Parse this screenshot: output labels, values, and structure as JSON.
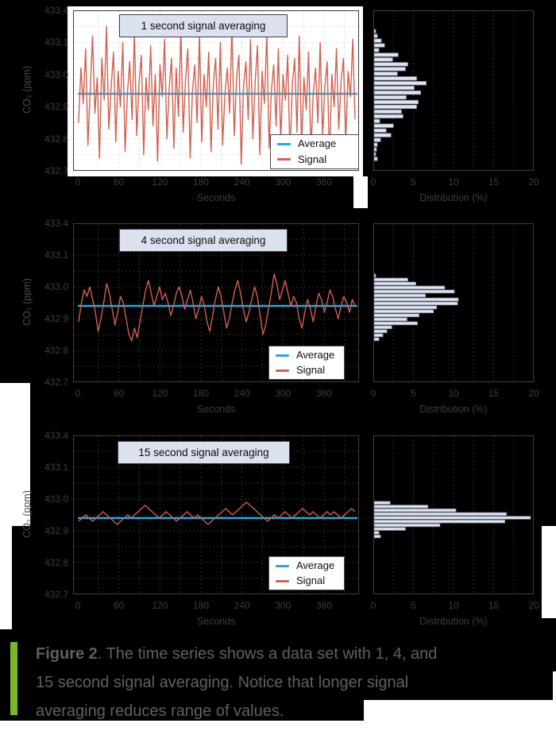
{
  "figure": {
    "caption": {
      "label": "Figure 2",
      "label_suffix": ". The time series shows a data set with 1, 4, and",
      "line2": "15 second signal averaging. Notice that longer signal",
      "line3": "averaging reduces range of values."
    },
    "accent_green": "#79b928"
  },
  "legend": {
    "average_label": "Average",
    "signal_label": "Signal"
  },
  "colors": {
    "signal": "#d0604f",
    "average": "#29a8e0",
    "bar_fill": "#e0e5f2",
    "bar_stroke": "#818898",
    "grid_on_black": "#2f2f2f",
    "grid_on_white": "#d9d9d9",
    "spine_on_black": "#3f3f3f",
    "spine_on_white": "#3a3a3a",
    "title_box_bg": "#dce1ef"
  },
  "chart_data": [
    {
      "type": "line",
      "title": "1 second signal averaging",
      "xlabel": "Seconds",
      "ylabel": "CO₂ (ppm)",
      "xticks": [
        0,
        60,
        120,
        180,
        240,
        300,
        360
      ],
      "ytick_labels": [
        "433.4",
        "433.1",
        "433.0",
        "432.9",
        "432.8",
        "432.7"
      ],
      "ylim": [
        432.7,
        433.2
      ],
      "average_value": 432.94,
      "legend": [
        "Average",
        "Signal"
      ],
      "series_values": [
        432.85,
        433.02,
        432.91,
        433.08,
        432.78,
        432.95,
        433.12,
        432.88,
        432.99,
        432.74,
        433.05,
        432.92,
        433.15,
        432.83,
        432.96,
        433.07,
        432.79,
        433.01,
        432.9,
        433.1,
        432.76,
        432.94,
        433.04,
        432.86,
        433.13,
        432.81,
        432.97,
        433.06,
        432.75,
        432.99,
        432.89,
        433.09,
        432.84,
        433.0,
        432.73,
        433.03,
        432.93,
        433.11,
        432.8,
        432.96,
        433.05,
        432.77,
        433.02,
        432.87,
        433.14,
        432.82,
        432.98,
        433.08,
        432.74,
        432.95,
        433.03,
        432.85,
        433.12,
        432.79,
        433.0,
        432.9,
        433.07,
        432.76,
        432.97,
        433.05,
        432.83,
        433.1,
        432.78,
        432.94,
        433.02,
        432.88,
        433.15,
        432.81,
        432.99,
        433.06,
        432.72,
        432.96,
        433.04,
        432.86,
        433.11,
        432.8,
        432.98,
        433.09,
        432.75,
        433.01,
        432.91,
        433.13,
        432.77,
        432.95,
        433.03,
        432.84,
        433.08,
        432.79,
        433.0,
        432.92,
        433.06,
        432.74,
        432.97,
        433.05,
        432.82,
        433.12,
        432.78,
        432.99,
        432.89,
        433.07,
        432.76,
        432.94,
        433.02,
        432.85,
        433.1,
        432.81,
        432.96,
        433.04,
        432.73,
        433.0,
        432.9,
        433.08,
        432.83,
        432.98,
        433.05,
        432.79,
        433.01,
        432.93,
        433.11,
        432.86
      ]
    },
    {
      "type": "line",
      "title": "4 second signal averaging",
      "xlabel": "Seconds",
      "ylabel": "CO₂ (ppm)",
      "xticks": [
        0,
        60,
        120,
        180,
        240,
        300,
        360
      ],
      "ytick_labels": [
        "433.4",
        "433.1",
        "433.0",
        "432.9",
        "432.8",
        "432.7"
      ],
      "ylim": [
        432.7,
        433.2
      ],
      "average_value": 432.94,
      "legend": [
        "Average",
        "Signal"
      ],
      "series_values": [
        432.89,
        432.95,
        432.99,
        432.97,
        433.0,
        432.96,
        432.92,
        432.86,
        432.9,
        432.95,
        433.01,
        432.98,
        432.93,
        432.88,
        432.92,
        432.97,
        432.95,
        432.9,
        432.85,
        432.83,
        432.87,
        432.84,
        432.89,
        432.94,
        432.99,
        433.02,
        432.98,
        432.94,
        432.97,
        433.0,
        432.96,
        432.98,
        432.95,
        432.91,
        432.94,
        432.98,
        433.0,
        432.97,
        432.93,
        432.96,
        432.99,
        432.95,
        432.9,
        432.93,
        432.97,
        432.94,
        432.89,
        432.86,
        432.91,
        432.96,
        433.0,
        432.97,
        432.92,
        432.87,
        432.9,
        432.95,
        432.99,
        433.02,
        432.98,
        432.93,
        432.89,
        432.92,
        432.96,
        433.0,
        432.97,
        432.91,
        432.85,
        432.88,
        432.93,
        432.98,
        433.04,
        433.01,
        432.96,
        432.99,
        433.02,
        432.98,
        432.94,
        432.97,
        432.95,
        432.9,
        432.87,
        432.92,
        432.96,
        432.93,
        432.89,
        432.94,
        432.98,
        432.96,
        432.92,
        432.95,
        432.99,
        432.97,
        432.93,
        432.9,
        432.94,
        432.97,
        432.95,
        432.92,
        432.96,
        432.94
      ]
    },
    {
      "type": "line",
      "title": "15 second signal averaging",
      "xlabel": "Seconds",
      "ylabel": "CO₂ (ppm)",
      "xticks": [
        0,
        60,
        120,
        180,
        240,
        300,
        360
      ],
      "ytick_labels": [
        "433.4",
        "433.1",
        "433.0",
        "432.9",
        "432.8",
        "432.7"
      ],
      "ylim": [
        432.7,
        433.2
      ],
      "average_value": 432.94,
      "legend": [
        "Average",
        "Signal"
      ],
      "series_values": [
        432.93,
        432.94,
        432.95,
        432.94,
        432.93,
        432.94,
        432.95,
        432.96,
        432.95,
        432.94,
        432.93,
        432.92,
        432.93,
        432.94,
        432.95,
        432.94,
        432.95,
        432.96,
        432.97,
        432.98,
        432.97,
        432.96,
        432.95,
        432.94,
        432.95,
        432.96,
        432.95,
        432.94,
        432.93,
        432.94,
        432.95,
        432.96,
        432.95,
        432.94,
        432.95,
        432.94,
        432.93,
        432.92,
        432.93,
        432.94,
        432.95,
        432.96,
        432.97,
        432.96,
        432.95,
        432.96,
        432.97,
        432.98,
        432.99,
        432.98,
        432.97,
        432.96,
        432.95,
        432.94,
        432.93,
        432.94,
        432.95,
        432.94,
        432.95,
        432.96,
        432.95,
        432.94,
        432.95,
        432.96,
        432.97,
        432.96,
        432.95,
        432.96,
        432.95,
        432.94,
        432.95,
        432.96,
        432.95,
        432.96,
        432.95,
        432.94,
        432.95,
        432.96,
        432.97,
        432.96
      ]
    },
    {
      "type": "bar",
      "orientation": "horizontal",
      "xlabel": "Distribution (%)",
      "xticks": [
        0,
        5,
        10,
        15,
        20
      ],
      "xlim": [
        0,
        20
      ],
      "values": [
        0.2,
        0.4,
        0.9,
        1.3,
        0.6,
        3.0,
        2.3,
        4.2,
        3.9,
        2.9,
        5.3,
        6.5,
        5.0,
        5.8,
        4.0,
        5.5,
        5.3,
        3.4,
        3.6,
        0.7,
        2.4,
        1.5,
        2.1,
        0.8,
        0.4,
        0.3,
        0.2,
        0.4
      ]
    },
    {
      "type": "bar",
      "orientation": "horizontal",
      "xlabel": "Distribution (%)",
      "xticks": [
        0,
        5,
        10,
        15,
        20
      ],
      "xlim": [
        0,
        20
      ],
      "values": [
        0.2,
        4.2,
        5.2,
        8.8,
        10.0,
        6.4,
        10.5,
        10.4,
        7.8,
        7.4,
        5.6,
        4.1,
        5.4,
        2.2,
        1.6,
        1.1,
        0.6
      ]
    },
    {
      "type": "bar",
      "orientation": "horizontal",
      "xlabel": "Distribution (%)",
      "xticks": [
        0,
        5,
        10,
        15,
        20
      ],
      "xlim": [
        0,
        20
      ],
      "values": [
        2.0,
        6.7,
        10.2,
        16.5,
        19.5,
        16.3,
        8.2,
        3.9,
        0.6,
        0.8
      ]
    }
  ]
}
